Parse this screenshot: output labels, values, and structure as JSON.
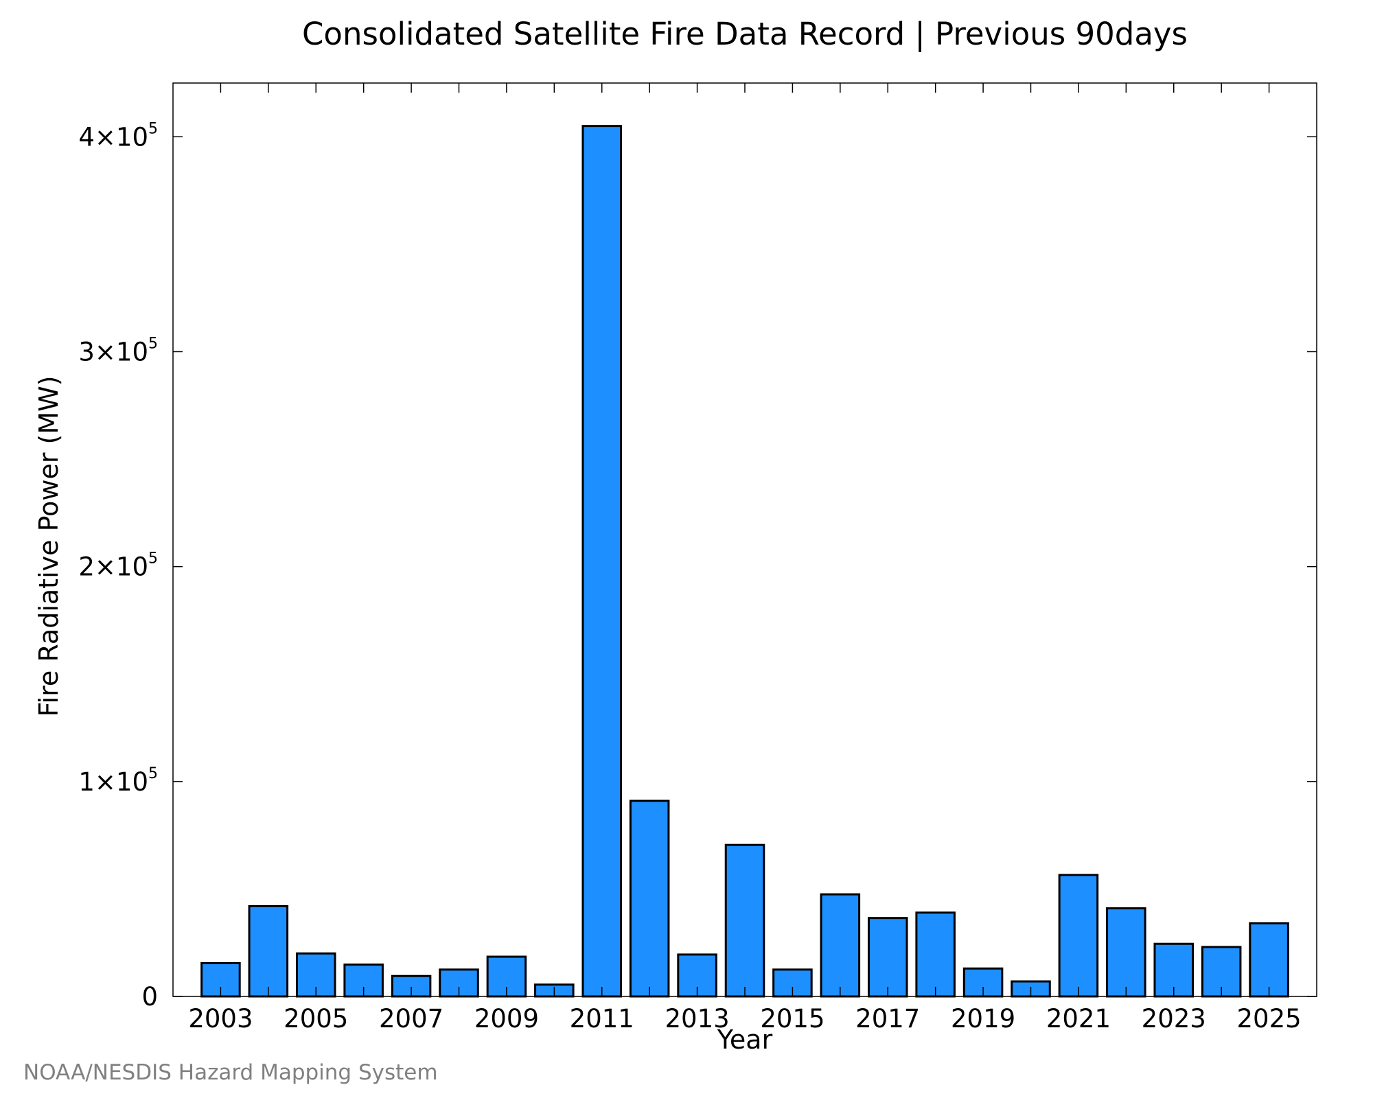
{
  "chart_data": {
    "type": "bar",
    "title": "Consolidated Satellite Fire Data Record | Previous 90days",
    "xlabel": "Year",
    "ylabel": "Fire Radiative Power (MW)",
    "categories": [
      "2003",
      "2004",
      "2005",
      "2006",
      "2007",
      "2008",
      "2009",
      "2010",
      "2011",
      "2012",
      "2013",
      "2014",
      "2015",
      "2016",
      "2017",
      "2018",
      "2019",
      "2020",
      "2021",
      "2022",
      "2023",
      "2024",
      "2025"
    ],
    "values": [
      15500,
      42000,
      20000,
      14800,
      9500,
      12500,
      18500,
      5500,
      405000,
      91000,
      19500,
      70500,
      12500,
      47500,
      36500,
      39000,
      13000,
      7000,
      56500,
      41000,
      24500,
      23000,
      34000
    ],
    "x_tick_labels": [
      "2003",
      "2005",
      "2007",
      "2009",
      "2011",
      "2013",
      "2015",
      "2017",
      "2019",
      "2021",
      "2023",
      "2025"
    ],
    "y_ticks": [
      {
        "value": 0,
        "mantissa": "0",
        "times": "",
        "exponent": ""
      },
      {
        "value": 100000,
        "mantissa": "1",
        "times": "×10",
        "exponent": "5"
      },
      {
        "value": 200000,
        "mantissa": "2",
        "times": "×10",
        "exponent": "5"
      },
      {
        "value": 300000,
        "mantissa": "3",
        "times": "×10",
        "exponent": "5"
      },
      {
        "value": 400000,
        "mantissa": "4",
        "times": "×10",
        "exponent": "5"
      }
    ],
    "xlim": [
      2002,
      2026
    ],
    "ylim": [
      0,
      425000
    ],
    "grid": false,
    "legend": "none",
    "bar_color": "#1e8fff",
    "bar_edge_color": "#000000"
  },
  "credit": "NOAA/NESDIS Hazard Mapping System"
}
